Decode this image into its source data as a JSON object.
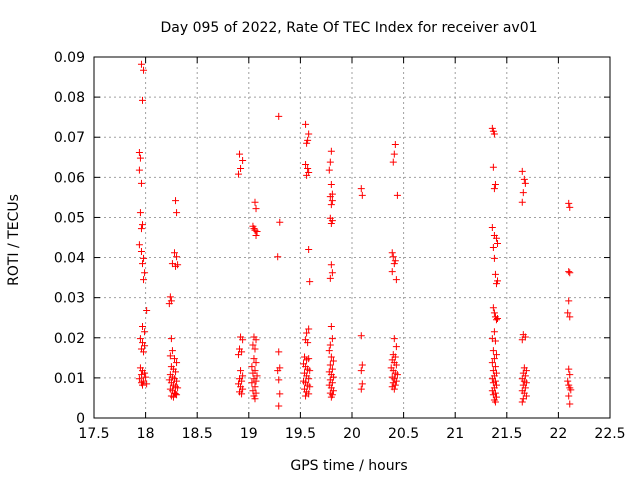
{
  "chart_data": {
    "type": "scatter",
    "title": "Day 095 of 2022, Rate Of TEC Index for receiver av01",
    "xlabel": "GPS time / hours",
    "ylabel": "ROTI / TECUs",
    "xlim": [
      17.5,
      22.5
    ],
    "ylim": [
      0,
      0.09
    ],
    "xticks": [
      17.5,
      18,
      18.5,
      19,
      19.5,
      20,
      20.5,
      21,
      21.5,
      22,
      22.5
    ],
    "xtick_labels": [
      "17.5",
      "18",
      "18.5",
      "19",
      "19.5",
      "20",
      "20.5",
      "21",
      "21.5",
      "22",
      "22.5"
    ],
    "yticks": [
      0,
      0.01,
      0.02,
      0.03,
      0.04,
      0.05,
      0.06,
      0.07,
      0.08,
      0.09
    ],
    "ytick_labels": [
      "0",
      "0.01",
      "0.02",
      "0.03",
      "0.04",
      "0.05",
      "0.06",
      "0.07",
      "0.08",
      "0.09"
    ],
    "grid": true,
    "marker": "plus",
    "color": "#ff0000",
    "series": [
      {
        "points": [
          [
            17.96,
            0.0882
          ],
          [
            17.98,
            0.0867
          ],
          [
            17.97,
            0.0792
          ],
          [
            17.94,
            0.0662
          ],
          [
            17.95,
            0.0648
          ],
          [
            17.94,
            0.0618
          ],
          [
            17.96,
            0.0585
          ],
          [
            17.95,
            0.0512
          ],
          [
            17.97,
            0.0482
          ],
          [
            17.96,
            0.0472
          ],
          [
            17.94,
            0.0432
          ],
          [
            17.96,
            0.0415
          ],
          [
            17.98,
            0.0398
          ],
          [
            17.97,
            0.0385
          ],
          [
            17.99,
            0.0362
          ],
          [
            17.98,
            0.0345
          ],
          [
            18.01,
            0.0268
          ],
          [
            17.97,
            0.0228
          ],
          [
            17.99,
            0.0215
          ],
          [
            17.95,
            0.0198
          ],
          [
            17.97,
            0.0188
          ],
          [
            17.99,
            0.018
          ],
          [
            17.96,
            0.0172
          ],
          [
            17.98,
            0.0165
          ],
          [
            17.95,
            0.0125
          ],
          [
            17.97,
            0.0118
          ],
          [
            17.99,
            0.0112
          ],
          [
            17.96,
            0.0108
          ],
          [
            18.0,
            0.0102
          ],
          [
            17.94,
            0.0098
          ],
          [
            17.98,
            0.0092
          ],
          [
            17.96,
            0.0088
          ],
          [
            18.01,
            0.0085
          ],
          [
            17.97,
            0.0082
          ],
          [
            18.29,
            0.0542
          ],
          [
            18.3,
            0.0512
          ],
          [
            18.28,
            0.0412
          ],
          [
            18.3,
            0.0402
          ],
          [
            18.26,
            0.0385
          ],
          [
            18.29,
            0.0378
          ],
          [
            18.31,
            0.0382
          ],
          [
            18.24,
            0.0302
          ],
          [
            18.25,
            0.0292
          ],
          [
            18.23,
            0.0285
          ],
          [
            18.25,
            0.0198
          ],
          [
            18.26,
            0.0168
          ],
          [
            18.24,
            0.0155
          ],
          [
            18.28,
            0.0148
          ],
          [
            18.3,
            0.0138
          ],
          [
            18.25,
            0.0128
          ],
          [
            18.27,
            0.0122
          ],
          [
            18.29,
            0.0115
          ],
          [
            18.24,
            0.0108
          ],
          [
            18.26,
            0.0102
          ],
          [
            18.28,
            0.0098
          ],
          [
            18.3,
            0.0092
          ],
          [
            18.25,
            0.0088
          ],
          [
            18.27,
            0.0082
          ],
          [
            18.29,
            0.0078
          ],
          [
            18.24,
            0.0072
          ],
          [
            18.26,
            0.0068
          ],
          [
            18.28,
            0.0062
          ],
          [
            18.3,
            0.0058
          ],
          [
            18.25,
            0.0055
          ],
          [
            18.27,
            0.0052
          ],
          [
            18.29,
            0.006
          ],
          [
            18.31,
            0.0075
          ],
          [
            18.23,
            0.0095
          ],
          [
            18.91,
            0.0658
          ],
          [
            18.94,
            0.0642
          ],
          [
            18.92,
            0.0622
          ],
          [
            18.9,
            0.0608
          ],
          [
            18.92,
            0.0202
          ],
          [
            18.94,
            0.0195
          ],
          [
            18.91,
            0.0172
          ],
          [
            18.93,
            0.0165
          ],
          [
            18.9,
            0.0158
          ],
          [
            18.92,
            0.0118
          ],
          [
            18.94,
            0.0105
          ],
          [
            18.91,
            0.0098
          ],
          [
            18.93,
            0.0092
          ],
          [
            18.9,
            0.0085
          ],
          [
            18.92,
            0.0078
          ],
          [
            18.94,
            0.0072
          ],
          [
            18.91,
            0.0065
          ],
          [
            18.93,
            0.006
          ],
          [
            19.06,
            0.0538
          ],
          [
            19.07,
            0.0522
          ],
          [
            19.04,
            0.0478
          ],
          [
            19.05,
            0.0472
          ],
          [
            19.06,
            0.0468
          ],
          [
            19.08,
            0.0465
          ],
          [
            19.07,
            0.0455
          ],
          [
            19.05,
            0.0202
          ],
          [
            19.07,
            0.0195
          ],
          [
            19.04,
            0.0182
          ],
          [
            19.06,
            0.0172
          ],
          [
            19.05,
            0.0148
          ],
          [
            19.07,
            0.0138
          ],
          [
            19.03,
            0.0128
          ],
          [
            19.06,
            0.0118
          ],
          [
            19.04,
            0.0112
          ],
          [
            19.08,
            0.0105
          ],
          [
            19.05,
            0.0098
          ],
          [
            19.07,
            0.0092
          ],
          [
            19.03,
            0.0088
          ],
          [
            19.06,
            0.0078
          ],
          [
            19.04,
            0.0068
          ],
          [
            19.07,
            0.0062
          ],
          [
            19.05,
            0.0055
          ],
          [
            19.06,
            0.0048
          ],
          [
            19.29,
            0.0752
          ],
          [
            19.3,
            0.0488
          ],
          [
            19.28,
            0.0402
          ],
          [
            19.29,
            0.0165
          ],
          [
            19.3,
            0.0125
          ],
          [
            19.28,
            0.0118
          ],
          [
            19.29,
            0.0095
          ],
          [
            19.3,
            0.006
          ],
          [
            19.29,
            0.003
          ],
          [
            19.55,
            0.0732
          ],
          [
            19.58,
            0.0708
          ],
          [
            19.57,
            0.0692
          ],
          [
            19.56,
            0.0685
          ],
          [
            19.55,
            0.0632
          ],
          [
            19.57,
            0.0622
          ],
          [
            19.58,
            0.0612
          ],
          [
            19.56,
            0.0605
          ],
          [
            19.58,
            0.042
          ],
          [
            19.59,
            0.034
          ],
          [
            19.58,
            0.0222
          ],
          [
            19.56,
            0.0212
          ],
          [
            19.55,
            0.0195
          ],
          [
            19.57,
            0.0188
          ],
          [
            19.54,
            0.0152
          ],
          [
            19.56,
            0.0145
          ],
          [
            19.58,
            0.0148
          ],
          [
            19.53,
            0.0135
          ],
          [
            19.55,
            0.0128
          ],
          [
            19.57,
            0.0122
          ],
          [
            19.59,
            0.0118
          ],
          [
            19.54,
            0.0112
          ],
          [
            19.56,
            0.0105
          ],
          [
            19.58,
            0.0098
          ],
          [
            19.53,
            0.0092
          ],
          [
            19.55,
            0.0088
          ],
          [
            19.57,
            0.0082
          ],
          [
            19.59,
            0.0078
          ],
          [
            19.54,
            0.0072
          ],
          [
            19.56,
            0.0065
          ],
          [
            19.58,
            0.006
          ],
          [
            19.55,
            0.0055
          ],
          [
            19.8,
            0.0665
          ],
          [
            19.79,
            0.0638
          ],
          [
            19.78,
            0.0618
          ],
          [
            19.8,
            0.0582
          ],
          [
            19.81,
            0.0558
          ],
          [
            19.79,
            0.0552
          ],
          [
            19.81,
            0.0542
          ],
          [
            19.8,
            0.0532
          ],
          [
            19.79,
            0.0498
          ],
          [
            19.81,
            0.0492
          ],
          [
            19.8,
            0.0485
          ],
          [
            19.8,
            0.0382
          ],
          [
            19.81,
            0.0362
          ],
          [
            19.79,
            0.0348
          ],
          [
            19.8,
            0.0228
          ],
          [
            19.81,
            0.0198
          ],
          [
            19.79,
            0.0182
          ],
          [
            19.78,
            0.0168
          ],
          [
            19.8,
            0.0152
          ],
          [
            19.82,
            0.0142
          ],
          [
            19.79,
            0.0132
          ],
          [
            19.81,
            0.0122
          ],
          [
            19.78,
            0.0115
          ],
          [
            19.8,
            0.0108
          ],
          [
            19.82,
            0.0102
          ],
          [
            19.79,
            0.0095
          ],
          [
            19.81,
            0.0088
          ],
          [
            19.78,
            0.0082
          ],
          [
            19.8,
            0.0075
          ],
          [
            19.82,
            0.0068
          ],
          [
            19.79,
            0.0062
          ],
          [
            19.81,
            0.0058
          ],
          [
            19.8,
            0.0052
          ],
          [
            20.09,
            0.0572
          ],
          [
            20.1,
            0.0555
          ],
          [
            20.09,
            0.0205
          ],
          [
            20.1,
            0.0132
          ],
          [
            20.09,
            0.0118
          ],
          [
            20.1,
            0.0085
          ],
          [
            20.09,
            0.0072
          ],
          [
            20.42,
            0.0682
          ],
          [
            20.41,
            0.0658
          ],
          [
            20.4,
            0.0638
          ],
          [
            20.44,
            0.0555
          ],
          [
            20.39,
            0.0412
          ],
          [
            20.4,
            0.0402
          ],
          [
            20.42,
            0.0392
          ],
          [
            20.41,
            0.0385
          ],
          [
            20.39,
            0.0365
          ],
          [
            20.43,
            0.0345
          ],
          [
            20.41,
            0.0198
          ],
          [
            20.43,
            0.0178
          ],
          [
            20.4,
            0.0158
          ],
          [
            20.42,
            0.0152
          ],
          [
            20.39,
            0.0145
          ],
          [
            20.41,
            0.0138
          ],
          [
            20.43,
            0.0132
          ],
          [
            20.38,
            0.0125
          ],
          [
            20.4,
            0.0118
          ],
          [
            20.42,
            0.0112
          ],
          [
            20.44,
            0.0108
          ],
          [
            20.39,
            0.0102
          ],
          [
            20.41,
            0.0098
          ],
          [
            20.43,
            0.0092
          ],
          [
            20.4,
            0.0088
          ],
          [
            20.42,
            0.0082
          ],
          [
            20.39,
            0.0078
          ],
          [
            20.41,
            0.0072
          ],
          [
            21.36,
            0.0722
          ],
          [
            21.37,
            0.0715
          ],
          [
            21.38,
            0.0708
          ],
          [
            21.37,
            0.0625
          ],
          [
            21.39,
            0.0582
          ],
          [
            21.38,
            0.0572
          ],
          [
            21.36,
            0.0475
          ],
          [
            21.38,
            0.0455
          ],
          [
            21.4,
            0.0448
          ],
          [
            21.41,
            0.0435
          ],
          [
            21.37,
            0.0425
          ],
          [
            21.38,
            0.0398
          ],
          [
            21.39,
            0.0358
          ],
          [
            21.41,
            0.0342
          ],
          [
            21.4,
            0.0335
          ],
          [
            21.37,
            0.0275
          ],
          [
            21.38,
            0.0262
          ],
          [
            21.39,
            0.0252
          ],
          [
            21.41,
            0.0248
          ],
          [
            21.4,
            0.0245
          ],
          [
            21.38,
            0.0215
          ],
          [
            21.36,
            0.0198
          ],
          [
            21.39,
            0.0192
          ],
          [
            21.37,
            0.0168
          ],
          [
            21.4,
            0.0158
          ],
          [
            21.38,
            0.0148
          ],
          [
            21.36,
            0.0138
          ],
          [
            21.39,
            0.0128
          ],
          [
            21.37,
            0.0118
          ],
          [
            21.4,
            0.0112
          ],
          [
            21.38,
            0.0105
          ],
          [
            21.36,
            0.0098
          ],
          [
            21.39,
            0.0092
          ],
          [
            21.37,
            0.0088
          ],
          [
            21.4,
            0.0082
          ],
          [
            21.38,
            0.0075
          ],
          [
            21.36,
            0.0068
          ],
          [
            21.39,
            0.0062
          ],
          [
            21.37,
            0.0058
          ],
          [
            21.4,
            0.0052
          ],
          [
            21.38,
            0.0045
          ],
          [
            21.39,
            0.004
          ],
          [
            21.65,
            0.0615
          ],
          [
            21.67,
            0.0595
          ],
          [
            21.68,
            0.0585
          ],
          [
            21.66,
            0.0562
          ],
          [
            21.65,
            0.0538
          ],
          [
            21.66,
            0.0208
          ],
          [
            21.68,
            0.0202
          ],
          [
            21.65,
            0.0195
          ],
          [
            21.67,
            0.0125
          ],
          [
            21.69,
            0.0118
          ],
          [
            21.66,
            0.0112
          ],
          [
            21.68,
            0.0105
          ],
          [
            21.65,
            0.0098
          ],
          [
            21.67,
            0.0092
          ],
          [
            21.69,
            0.0088
          ],
          [
            21.66,
            0.0082
          ],
          [
            21.68,
            0.0075
          ],
          [
            21.65,
            0.0068
          ],
          [
            21.67,
            0.0062
          ],
          [
            21.69,
            0.0055
          ],
          [
            21.66,
            0.0048
          ],
          [
            21.65,
            0.004
          ],
          [
            22.1,
            0.0535
          ],
          [
            22.11,
            0.0525
          ],
          [
            22.1,
            0.0365
          ],
          [
            22.11,
            0.0362
          ],
          [
            22.1,
            0.0292
          ],
          [
            22.09,
            0.0262
          ],
          [
            22.11,
            0.0252
          ],
          [
            22.1,
            0.0122
          ],
          [
            22.11,
            0.0108
          ],
          [
            22.09,
            0.0092
          ],
          [
            22.1,
            0.0082
          ],
          [
            22.11,
            0.0075
          ],
          [
            22.12,
            0.007
          ],
          [
            22.1,
            0.0055
          ],
          [
            22.11,
            0.0035
          ]
        ]
      }
    ]
  }
}
